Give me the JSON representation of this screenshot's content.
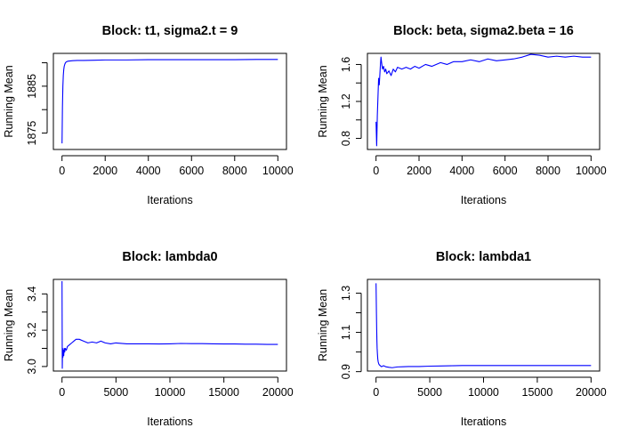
{
  "page": {
    "background": "#ffffff"
  },
  "line_color": "#0000ff",
  "chart_data": [
    {
      "type": "line",
      "title": "Block: t1, sigma2.t = 9",
      "xlabel": "Iterations",
      "ylabel": "Running Mean",
      "xlim": [
        -400,
        10400
      ],
      "ylim": [
        1871.5,
        1892.0
      ],
      "xticks": [
        0,
        2000,
        4000,
        6000,
        8000,
        10000
      ],
      "yticks": [
        1875,
        1885
      ],
      "yminor": [
        1880,
        1890
      ],
      "series": [
        {
          "color": "#0000ff",
          "x": [
            1,
            20,
            40,
            60,
            80,
            100,
            130,
            160,
            200,
            250,
            300,
            400,
            500,
            700,
            1000,
            1500,
            2000,
            3000,
            4000,
            5000,
            6000,
            7000,
            8000,
            9000,
            10000
          ],
          "y": [
            1872.8,
            1880.5,
            1885.0,
            1887.3,
            1888.5,
            1889.2,
            1889.7,
            1890.0,
            1890.2,
            1890.3,
            1890.35,
            1890.4,
            1890.45,
            1890.5,
            1890.5,
            1890.55,
            1890.6,
            1890.6,
            1890.65,
            1890.65,
            1890.65,
            1890.65,
            1890.65,
            1890.7,
            1890.7
          ]
        }
      ]
    },
    {
      "type": "line",
      "title": "Block: beta, sigma2.beta = 16",
      "xlabel": "Iterations",
      "ylabel": "Running Mean",
      "xlim": [
        -400,
        10400
      ],
      "ylim": [
        0.68,
        1.72
      ],
      "xticks": [
        0,
        2000,
        4000,
        6000,
        8000,
        10000
      ],
      "yticks": [
        0.8,
        1.2,
        1.6
      ],
      "yminor": [
        1.0,
        1.4
      ],
      "series": [
        {
          "color": "#0000ff",
          "x": [
            1,
            30,
            60,
            90,
            120,
            150,
            180,
            200,
            230,
            260,
            300,
            350,
            400,
            450,
            500,
            600,
            700,
            800,
            900,
            1000,
            1200,
            1400,
            1600,
            1800,
            2000,
            2300,
            2600,
            3000,
            3300,
            3600,
            4000,
            4400,
            4800,
            5200,
            5600,
            6000,
            6400,
            6800,
            7200,
            7600,
            8000,
            8400,
            8800,
            9200,
            9600,
            10000
          ],
          "y": [
            0.98,
            0.72,
            1.05,
            1.25,
            1.45,
            1.38,
            1.5,
            1.58,
            1.68,
            1.62,
            1.55,
            1.58,
            1.52,
            1.55,
            1.5,
            1.53,
            1.48,
            1.55,
            1.52,
            1.57,
            1.55,
            1.57,
            1.55,
            1.58,
            1.56,
            1.6,
            1.58,
            1.62,
            1.6,
            1.63,
            1.63,
            1.65,
            1.63,
            1.66,
            1.64,
            1.65,
            1.66,
            1.68,
            1.71,
            1.7,
            1.68,
            1.69,
            1.68,
            1.69,
            1.68,
            1.68
          ]
        }
      ]
    },
    {
      "type": "line",
      "title": "Block: lambda0",
      "xlabel": "Iterations",
      "ylabel": "Running Mean",
      "xlim": [
        -800,
        20800
      ],
      "ylim": [
        2.975,
        3.48
      ],
      "xticks": [
        0,
        5000,
        10000,
        15000,
        20000
      ],
      "yticks": [
        3.0,
        3.2,
        3.4
      ],
      "yticklabels": [
        "3.0",
        "3.2",
        "3.4"
      ],
      "yminor": [
        3.1,
        3.3
      ],
      "series": [
        {
          "color": "#0000ff",
          "x": [
            1,
            25,
            50,
            80,
            120,
            160,
            200,
            250,
            300,
            400,
            500,
            700,
            900,
            1100,
            1300,
            1600,
            2000,
            2400,
            2800,
            3200,
            3600,
            4000,
            4500,
            5000,
            6000,
            7000,
            8000,
            9000,
            10000,
            11000,
            12000,
            13000,
            14000,
            15000,
            16000,
            17000,
            18000,
            19000,
            20000
          ],
          "y": [
            3.47,
            2.99,
            3.1,
            3.05,
            3.09,
            3.06,
            3.1,
            3.08,
            3.1,
            3.09,
            3.11,
            3.12,
            3.13,
            3.14,
            3.15,
            3.15,
            3.14,
            3.13,
            3.135,
            3.13,
            3.14,
            3.13,
            3.125,
            3.13,
            3.125,
            3.125,
            3.125,
            3.124,
            3.125,
            3.127,
            3.126,
            3.126,
            3.125,
            3.124,
            3.124,
            3.123,
            3.123,
            3.122,
            3.122
          ]
        }
      ]
    },
    {
      "type": "line",
      "title": "Block: lambda1",
      "xlabel": "Iterations",
      "ylabel": "Running Mean",
      "xlim": [
        -800,
        20800
      ],
      "ylim": [
        0.903,
        1.37
      ],
      "xticks": [
        0,
        5000,
        10000,
        15000,
        20000
      ],
      "yticks": [
        0.9,
        1.1,
        1.3
      ],
      "yticklabels": [
        "0.9",
        "1.1",
        "1.3"
      ],
      "yminor": [
        1.0,
        1.2
      ],
      "series": [
        {
          "color": "#0000ff",
          "x": [
            1,
            20,
            40,
            60,
            80,
            100,
            130,
            160,
            200,
            250,
            300,
            400,
            500,
            700,
            900,
            1200,
            1500,
            2000,
            2500,
            3000,
            4000,
            5000,
            6000,
            7000,
            8000,
            10000,
            12000,
            14000,
            16000,
            18000,
            20000
          ],
          "y": [
            1.35,
            1.27,
            1.19,
            1.12,
            1.06,
            1.02,
            0.99,
            0.965,
            0.95,
            0.94,
            0.935,
            0.93,
            0.925,
            0.93,
            0.925,
            0.922,
            0.92,
            0.924,
            0.925,
            0.926,
            0.926,
            0.928,
            0.929,
            0.93,
            0.931,
            0.931,
            0.931,
            0.931,
            0.931,
            0.931,
            0.931
          ]
        }
      ]
    }
  ]
}
